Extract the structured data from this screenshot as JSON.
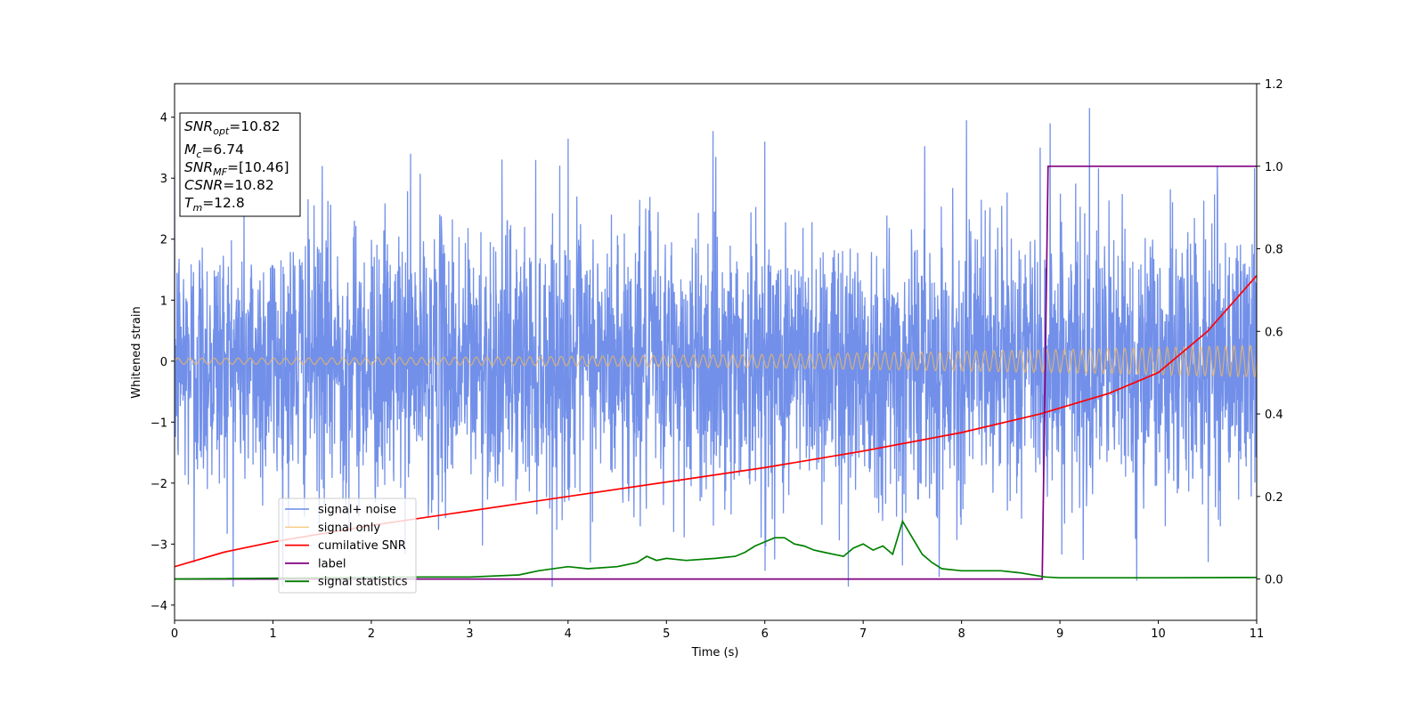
{
  "chart_data": {
    "type": "line",
    "xlabel": "Time (s)",
    "ylabel": "Whitened strain",
    "xlim": [
      0,
      11
    ],
    "ylim": [
      -4.25,
      4.55
    ],
    "y2lim": [
      -0.1,
      1.2
    ],
    "x_ticks": [
      "0",
      "1",
      "2",
      "3",
      "4",
      "5",
      "6",
      "7",
      "8",
      "9",
      "10",
      "11"
    ],
    "y_ticks": [
      "−4",
      "−3",
      "−2",
      "−1",
      "0",
      "1",
      "2",
      "3",
      "4"
    ],
    "y2_ticks": [
      "0.0",
      "0.2",
      "0.4",
      "0.6",
      "0.8",
      "1.0",
      "1.2"
    ],
    "legend_position": "lower-left",
    "colors": {
      "signal_noise": "#6a8ae8",
      "signal_only": "#f5b95a",
      "cumulative_snr": "#ff0000",
      "label": "#800080",
      "signal_statistics": "#008000"
    },
    "series": [
      {
        "name": "signal+ noise",
        "axis": "left",
        "style": "noise",
        "sigma": 1.1,
        "peaks": [
          [
            0.2,
            -3.3
          ],
          [
            1.5,
            3.2
          ],
          [
            2.4,
            3.4
          ],
          [
            4.0,
            3.65
          ],
          [
            5.5,
            3.35
          ],
          [
            6.0,
            3.6
          ],
          [
            6.1,
            -3.25
          ],
          [
            6.85,
            -3.85
          ],
          [
            7.4,
            -3.35
          ],
          [
            8.05,
            3.95
          ],
          [
            8.8,
            3.5
          ],
          [
            8.9,
            3.9
          ],
          [
            9.3,
            4.15
          ],
          [
            9.78,
            -3.6
          ],
          [
            10.6,
            3.2
          ]
        ]
      },
      {
        "name": "signal only",
        "axis": "left",
        "style": "chirp",
        "amplitude_start": 0.05,
        "amplitude_end": 0.26,
        "cycles_per_second": 8
      },
      {
        "name": "cumilative SNR",
        "axis": "right",
        "x": [
          0,
          0.5,
          1,
          2,
          3,
          4,
          5,
          6,
          7,
          8,
          8.8,
          9.5,
          10,
          10.5,
          11
        ],
        "y": [
          0.03,
          0.065,
          0.09,
          0.13,
          0.165,
          0.2,
          0.235,
          0.27,
          0.31,
          0.355,
          0.4,
          0.45,
          0.5,
          0.6,
          0.735
        ]
      },
      {
        "name": "label",
        "axis": "right",
        "x": [
          0,
          8.82,
          8.88,
          11
        ],
        "y": [
          0,
          0,
          1,
          1
        ]
      },
      {
        "name": "signal statistics",
        "axis": "right",
        "x": [
          0,
          2.5,
          3,
          3.5,
          3.7,
          4,
          4.2,
          4.5,
          4.7,
          4.8,
          4.9,
          5,
          5.2,
          5.5,
          5.7,
          5.8,
          5.9,
          6.0,
          6.1,
          6.2,
          6.3,
          6.4,
          6.5,
          6.6,
          6.7,
          6.8,
          6.9,
          7.0,
          7.1,
          7.2,
          7.3,
          7.4,
          7.5,
          7.6,
          7.7,
          7.8,
          8.0,
          8.2,
          8.4,
          8.6,
          8.85,
          9,
          10,
          11
        ],
        "y": [
          0,
          0.005,
          0.005,
          0.01,
          0.02,
          0.03,
          0.025,
          0.03,
          0.04,
          0.055,
          0.045,
          0.05,
          0.045,
          0.05,
          0.055,
          0.065,
          0.08,
          0.09,
          0.1,
          0.1,
          0.085,
          0.08,
          0.07,
          0.065,
          0.06,
          0.055,
          0.075,
          0.085,
          0.07,
          0.08,
          0.06,
          0.14,
          0.1,
          0.06,
          0.04,
          0.025,
          0.02,
          0.02,
          0.02,
          0.015,
          0.005,
          0.003,
          0.003,
          0.004
        ]
      }
    ],
    "legend": [
      "signal+ noise",
      "signal only",
      "cumilative SNR",
      "label",
      "signal statistics"
    ],
    "stats_box": [
      {
        "base": "SNR",
        "sub": "opt",
        "value": "=10.82"
      },
      {
        "base": "M",
        "sub": "c",
        "value": "=6.74"
      },
      {
        "base": "SNR",
        "sub": "MF",
        "value": "=[10.46]"
      },
      {
        "base": "CSNR",
        "sub": "",
        "value": "=10.82"
      },
      {
        "base": "T",
        "sub": "m",
        "value": "=12.8"
      }
    ]
  }
}
